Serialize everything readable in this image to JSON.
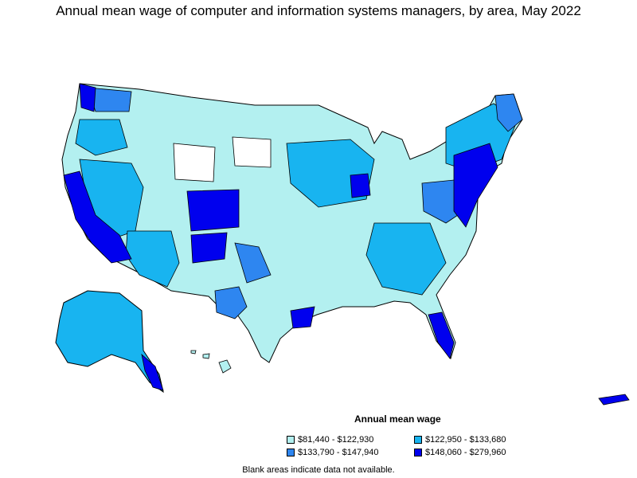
{
  "title": "Annual mean wage of computer and information systems managers, by area, May 2022",
  "legend": {
    "title": "Annual mean wage",
    "items": [
      {
        "label": "$81,440 - $122,930",
        "color": "#b3f0f0"
      },
      {
        "label": "$122,950 - $133,680",
        "color": "#18b4f0"
      },
      {
        "label": "$133,790 - $147,940",
        "color": "#2e86f0"
      },
      {
        "label": "$148,060 - $279,960",
        "color": "#0000ee"
      }
    ]
  },
  "note": "Blank areas indicate data not available.",
  "colors": {
    "level1": "#b3f0f0",
    "level2": "#18b4f0",
    "level3": "#2e86f0",
    "level4": "#0000ee",
    "no_data": "#ffffff",
    "border": "#000000"
  }
}
